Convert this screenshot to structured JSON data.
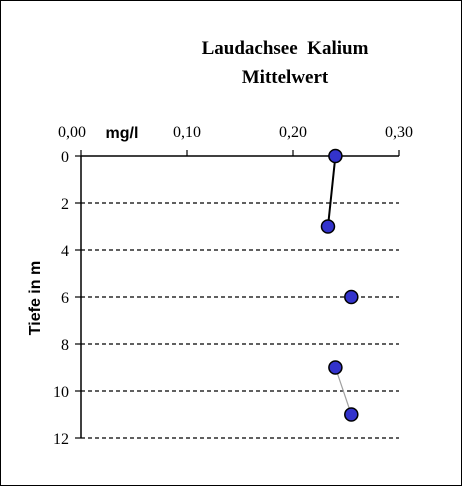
{
  "chart_data": {
    "type": "scatter",
    "title": "Laudachsee  Kalium",
    "subtitle": "Mittelwert",
    "xlabel": "mg/l",
    "ylabel": "Tiefe in m",
    "x_ticks": [
      "0,00",
      "0,10",
      "0,20",
      "0,30"
    ],
    "y_ticks": [
      "0",
      "2",
      "4",
      "6",
      "8",
      "10",
      "12"
    ],
    "xlim": [
      0,
      0.3
    ],
    "ylim": [
      0,
      12
    ],
    "y_reversed": true,
    "x_axis_position": "top",
    "grid": "horizontal dashed",
    "point_color": "#3333cc",
    "point_edge_color": "#000000",
    "series": [
      {
        "values": [
          {
            "x": 0.24,
            "y": 0
          },
          {
            "x": 0.233,
            "y": 3
          }
        ],
        "line_color": "#000000"
      },
      {
        "values": [
          {
            "x": 0.255,
            "y": 6
          }
        ]
      },
      {
        "values": [
          {
            "x": 0.24,
            "y": 9
          },
          {
            "x": 0.255,
            "y": 11
          }
        ],
        "line_color": "#a0a0a0"
      }
    ]
  }
}
